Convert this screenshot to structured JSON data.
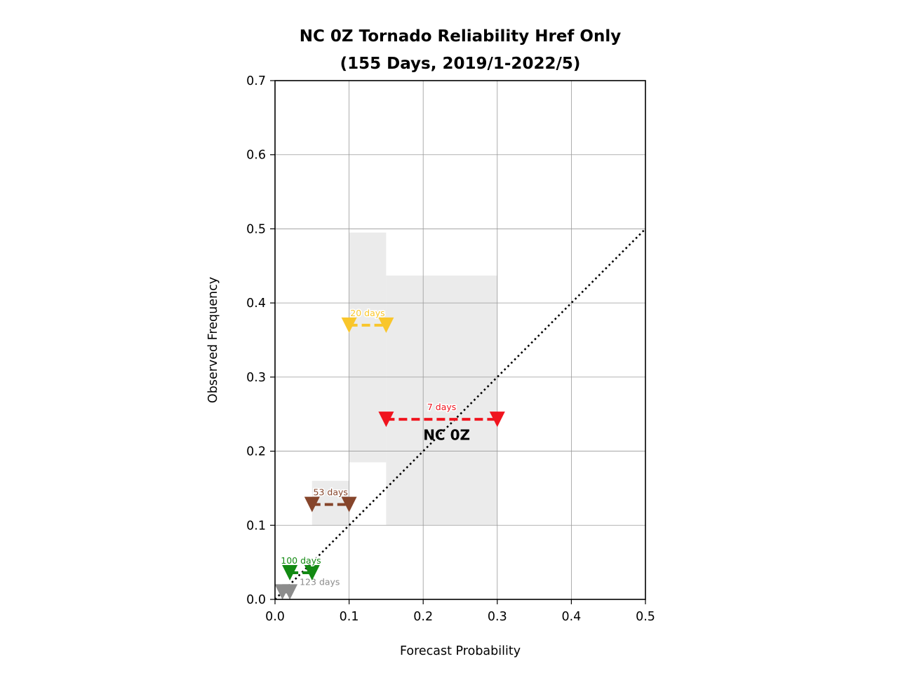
{
  "chart_data": {
    "type": "scatter",
    "title_line1": "NC 0Z Tornado Reliability Href Only",
    "title_line2": "(155 Days, 2019/1-2022/5)",
    "xlabel": "Forecast Probability",
    "ylabel": "Observed Frequency",
    "xlim": [
      0,
      0.5
    ],
    "ylim": [
      0,
      0.7
    ],
    "xticks": [
      "0.0",
      "0.1",
      "0.2",
      "0.3",
      "0.4",
      "0.5"
    ],
    "yticks": [
      "0.0",
      "0.1",
      "0.2",
      "0.3",
      "0.4",
      "0.5",
      "0.6",
      "0.7"
    ],
    "grid": true,
    "reference_line": {
      "x": [
        0,
        0.5
      ],
      "y": [
        0,
        0.5
      ],
      "style": "dotted",
      "color": "#000000"
    },
    "region_label": {
      "text": "NC 0Z",
      "x": 0.2,
      "y": 0.215
    },
    "shaded_bars": [
      {
        "x0": 0.05,
        "x1": 0.1,
        "y0": 0.1,
        "y1": 0.16
      },
      {
        "x0": 0.1,
        "x1": 0.15,
        "y0": 0.185,
        "y1": 0.495
      },
      {
        "x0": 0.15,
        "x1": 0.3,
        "y0": 0.1,
        "y1": 0.437
      }
    ],
    "shade_color": "#ebebeb",
    "series": [
      {
        "label": "123 days",
        "x0": 0.01,
        "x1": 0.02,
        "y": 0.01,
        "color": "#8c8c8c",
        "label_side": "right"
      },
      {
        "label": "100 days",
        "x0": 0.02,
        "x1": 0.05,
        "y": 0.036,
        "color": "#138a13",
        "label_side": "above"
      },
      {
        "label": "53 days",
        "x0": 0.05,
        "x1": 0.1,
        "y": 0.128,
        "color": "#86452b",
        "label_side": "above"
      },
      {
        "label": "20 days",
        "x0": 0.1,
        "x1": 0.15,
        "y": 0.37,
        "color": "#f9c62b",
        "label_side": "above"
      },
      {
        "label": "7 days",
        "x0": 0.15,
        "x1": 0.3,
        "y": 0.243,
        "color": "#f0141e",
        "label_side": "above"
      }
    ]
  }
}
